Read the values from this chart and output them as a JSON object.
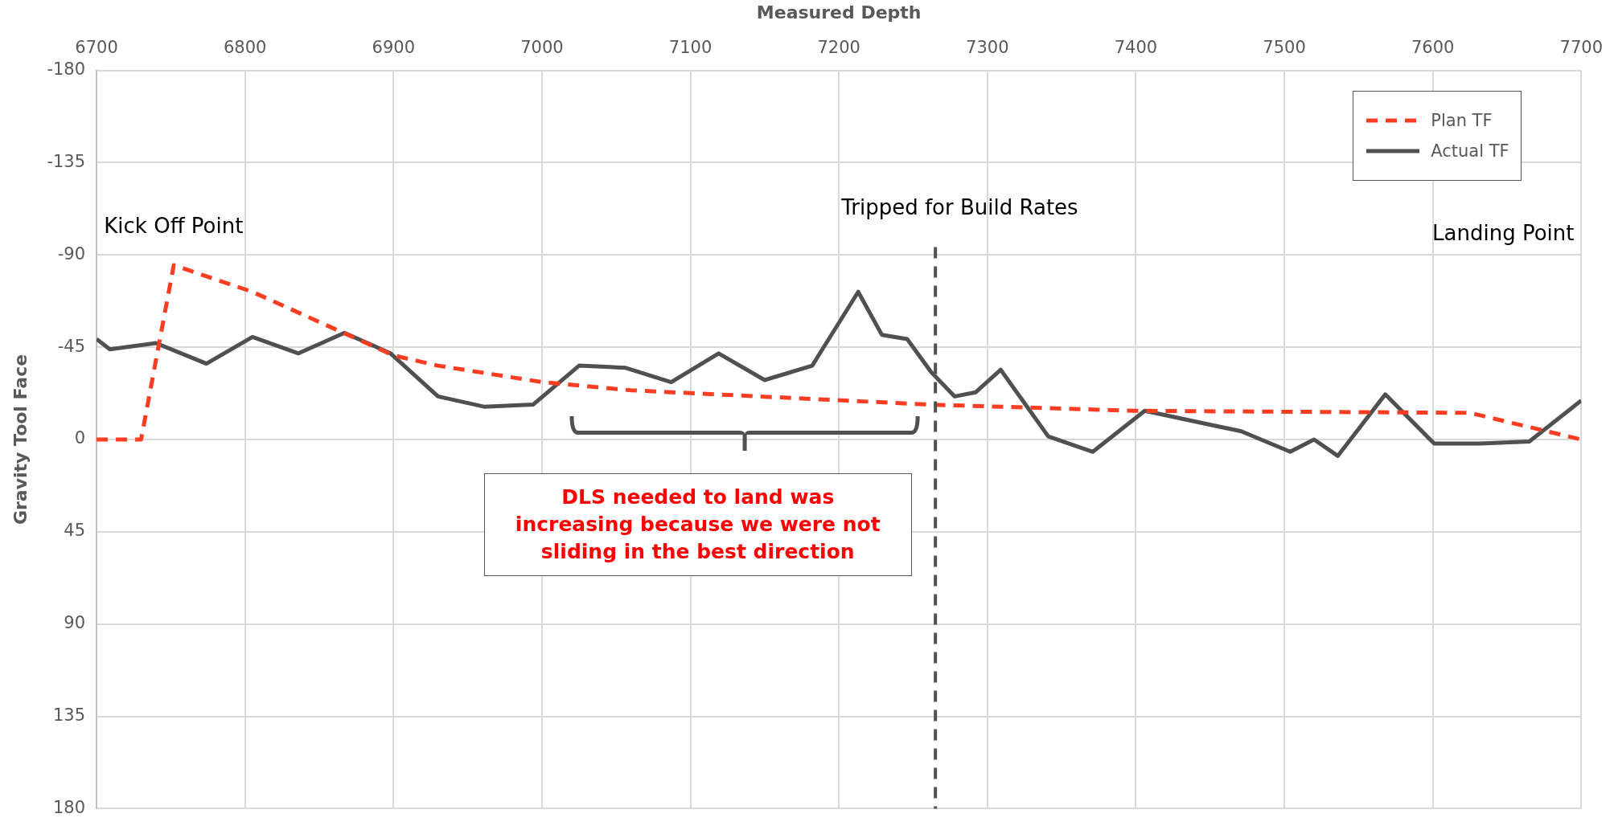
{
  "chart_data": {
    "type": "line",
    "xlabel": "Measured Depth",
    "ylabel": "Gravity Tool Face",
    "xlim": [
      6700,
      7700
    ],
    "xticks": [
      6700,
      6800,
      6900,
      7000,
      7100,
      7200,
      7300,
      7400,
      7500,
      7600,
      7700
    ],
    "ylim": [
      180,
      -180
    ],
    "yticks": [
      -180,
      -135,
      -90,
      -45,
      0,
      45,
      90,
      135,
      180
    ],
    "grid": true,
    "legend": "top right",
    "marker": "none",
    "series": [
      {
        "name": "Plan TF",
        "color": "#fc3d21",
        "line_style": "dashed",
        "x": [
          6700,
          6730,
          6752,
          6805,
          6900,
          6930,
          7000,
          7060,
          7262,
          7400,
          7625,
          7700
        ],
        "values": [
          0,
          0,
          -85,
          -72,
          -41,
          -36,
          -28,
          -24,
          -17,
          -14,
          -13,
          0
        ]
      },
      {
        "name": "Actual TF",
        "color": "#505050",
        "line_style": "solid",
        "x": [
          6700,
          6709,
          6740,
          6774,
          6805,
          6836,
          6867,
          6898,
          6930,
          6961,
          6994,
          7025,
          7056,
          7087,
          7119,
          7150,
          7182,
          7213,
          7229,
          7246,
          7262,
          7278,
          7292,
          7309,
          7341,
          7371,
          7406,
          7471,
          7504,
          7520,
          7536,
          7568,
          7601,
          7632,
          7665,
          7700
        ],
        "values": [
          -49,
          -44,
          -47,
          -37,
          -50,
          -42,
          -52,
          -42,
          -21,
          -16,
          -17,
          -36,
          -35,
          -28,
          -42,
          -29,
          -36,
          -72,
          -51,
          -49,
          -33,
          -21,
          -23,
          -34,
          -1.5,
          6,
          -14,
          -4,
          6,
          0,
          8,
          -22,
          2,
          2,
          1,
          -19
        ]
      }
    ],
    "ref_lines": [
      {
        "axis": "x",
        "value": 7265,
        "label": "Tripped for Build Rates",
        "color": "#505050",
        "line_style": "dashed"
      }
    ],
    "annotations": [
      "Kick Off Point",
      "Landing Point",
      "DLS needed to land was increasing because we were not sliding in the best direction"
    ]
  }
}
